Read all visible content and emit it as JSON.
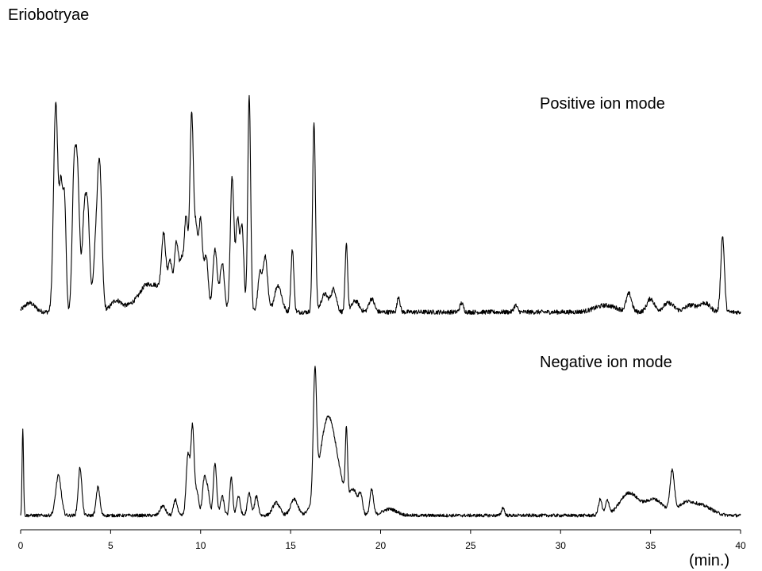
{
  "figure_title": "Eriobotryae",
  "chart_data": {
    "type": "line",
    "title": "Eriobotryae",
    "xlabel": "(min.)",
    "ylabel": "",
    "xlim": [
      0,
      40
    ],
    "ylim": [
      0,
      100
    ],
    "x_ticks": [
      0,
      5,
      10,
      15,
      20,
      25,
      30,
      35,
      40
    ],
    "grid": false,
    "legend": "none",
    "series": [
      {
        "name": "Positive ion mode",
        "baseline": 3,
        "noise": 1,
        "peaks": [
          [
            0.5,
            4,
            0.3
          ],
          [
            1.95,
            93,
            0.12
          ],
          [
            2.25,
            55,
            0.1
          ],
          [
            2.45,
            45,
            0.08
          ],
          [
            2.95,
            50,
            0.1
          ],
          [
            3.15,
            63,
            0.12
          ],
          [
            3.55,
            45,
            0.12
          ],
          [
            3.75,
            35,
            0.1
          ],
          [
            4.2,
            30,
            0.15
          ],
          [
            4.4,
            55,
            0.12
          ],
          [
            5.3,
            5,
            0.3
          ],
          [
            6.5,
            5,
            0.5
          ],
          [
            7.0,
            8,
            0.3
          ],
          [
            7.6,
            10,
            0.3
          ],
          [
            7.95,
            30,
            0.12
          ],
          [
            8.3,
            22,
            0.12
          ],
          [
            8.65,
            30,
            0.12
          ],
          [
            8.95,
            22,
            0.12
          ],
          [
            9.2,
            40,
            0.1
          ],
          [
            9.5,
            88,
            0.1
          ],
          [
            9.75,
            35,
            0.1
          ],
          [
            10.0,
            40,
            0.1
          ],
          [
            10.3,
            25,
            0.12
          ],
          [
            10.8,
            28,
            0.12
          ],
          [
            11.2,
            22,
            0.12
          ],
          [
            11.75,
            60,
            0.1
          ],
          [
            12.05,
            40,
            0.1
          ],
          [
            12.3,
            37,
            0.1
          ],
          [
            12.7,
            97,
            0.08
          ],
          [
            13.3,
            17,
            0.12
          ],
          [
            13.6,
            24,
            0.12
          ],
          [
            14.3,
            12,
            0.2
          ],
          [
            15.1,
            28,
            0.08
          ],
          [
            16.3,
            85,
            0.08
          ],
          [
            16.9,
            8,
            0.2
          ],
          [
            17.4,
            10,
            0.15
          ],
          [
            18.1,
            30,
            0.07
          ],
          [
            18.6,
            5,
            0.2
          ],
          [
            19.5,
            6,
            0.15
          ],
          [
            21.0,
            7,
            0.08
          ],
          [
            24.5,
            4,
            0.1
          ],
          [
            27.5,
            3,
            0.1
          ],
          [
            32.5,
            3,
            0.6
          ],
          [
            33.8,
            8,
            0.15
          ],
          [
            35.0,
            6,
            0.2
          ],
          [
            36.0,
            4,
            0.3
          ],
          [
            37.2,
            3,
            0.3
          ],
          [
            38.0,
            4,
            0.3
          ],
          [
            39.0,
            34,
            0.1
          ]
        ]
      },
      {
        "name": "Negative ion mode",
        "baseline": 3,
        "noise": 1,
        "peaks": [
          [
            0.12,
            55,
            0.04
          ],
          [
            2.1,
            25,
            0.15
          ],
          [
            3.3,
            30,
            0.1
          ],
          [
            4.3,
            18,
            0.1
          ],
          [
            7.9,
            6,
            0.15
          ],
          [
            8.6,
            10,
            0.1
          ],
          [
            9.3,
            38,
            0.1
          ],
          [
            9.55,
            55,
            0.09
          ],
          [
            9.8,
            15,
            0.1
          ],
          [
            10.2,
            22,
            0.1
          ],
          [
            10.4,
            15,
            0.1
          ],
          [
            10.8,
            33,
            0.09
          ],
          [
            11.2,
            12,
            0.1
          ],
          [
            11.7,
            24,
            0.08
          ],
          [
            12.1,
            12,
            0.1
          ],
          [
            12.7,
            14,
            0.1
          ],
          [
            13.1,
            12,
            0.1
          ],
          [
            14.2,
            8,
            0.2
          ],
          [
            15.2,
            10,
            0.2
          ],
          [
            16.35,
            75,
            0.09
          ],
          [
            16.8,
            32,
            0.4
          ],
          [
            17.5,
            30,
            0.4
          ],
          [
            17.1,
            20,
            0.3
          ],
          [
            18.1,
            42,
            0.06
          ],
          [
            18.5,
            15,
            0.25
          ],
          [
            18.9,
            10,
            0.1
          ],
          [
            19.5,
            16,
            0.1
          ],
          [
            20.5,
            4,
            0.4
          ],
          [
            26.8,
            5,
            0.08
          ],
          [
            32.2,
            10,
            0.1
          ],
          [
            32.6,
            9,
            0.1
          ],
          [
            33.8,
            14,
            0.5
          ],
          [
            35.2,
            10,
            0.5
          ],
          [
            36.2,
            25,
            0.12
          ],
          [
            37.0,
            8,
            0.5
          ],
          [
            38.0,
            5,
            0.5
          ]
        ]
      }
    ],
    "annotations": [
      "Positive ion mode",
      "Negative ion mode"
    ]
  }
}
